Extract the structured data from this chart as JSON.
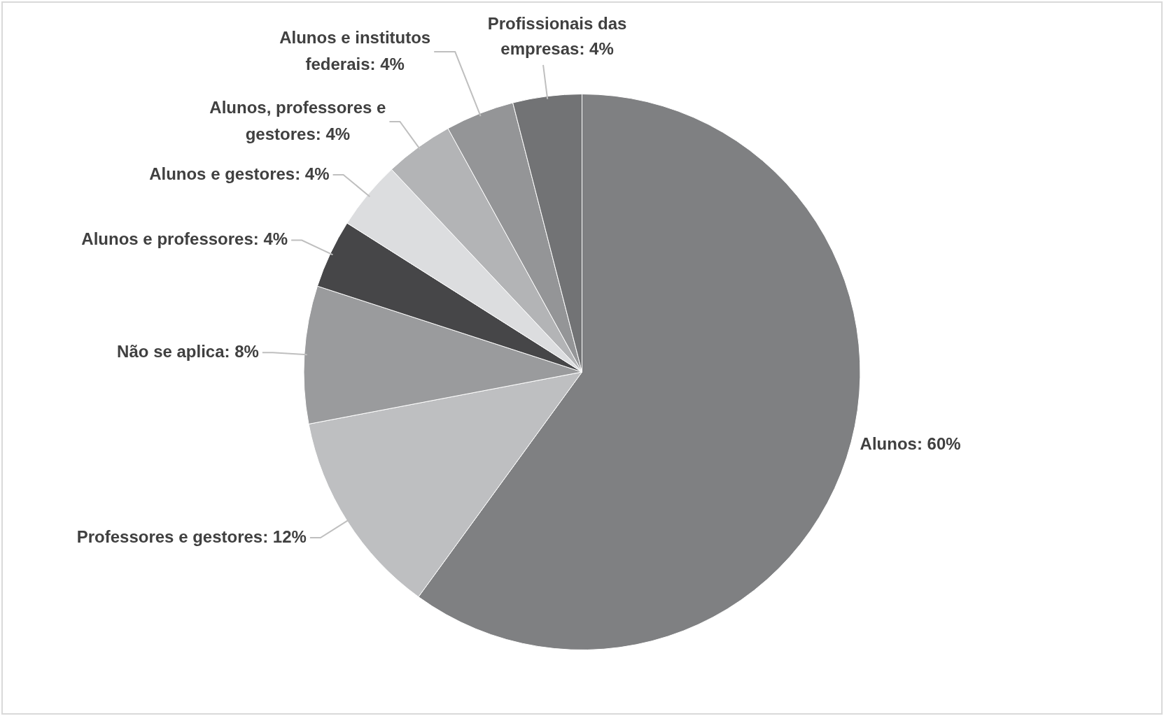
{
  "chart_data": {
    "type": "pie",
    "categories": [
      "Alunos",
      "Professores e gestores",
      "Não se aplica",
      "Alunos e professores",
      "Alunos e gestores",
      "Alunos, professores e gestores",
      "Alunos e institutos federais",
      "Profissionais das empresas"
    ],
    "values": [
      60,
      12,
      8,
      4,
      4,
      4,
      4,
      4
    ],
    "value_labels": [
      "60%",
      "12%",
      "8%",
      "4%",
      "4%",
      "4%",
      "4%",
      "4%"
    ],
    "colors": [
      "#7f8082",
      "#bebfc1",
      "#9a9b9d",
      "#464648",
      "#dcdddf",
      "#b3b4b6",
      "#949597",
      "#727375"
    ],
    "legend": false
  }
}
